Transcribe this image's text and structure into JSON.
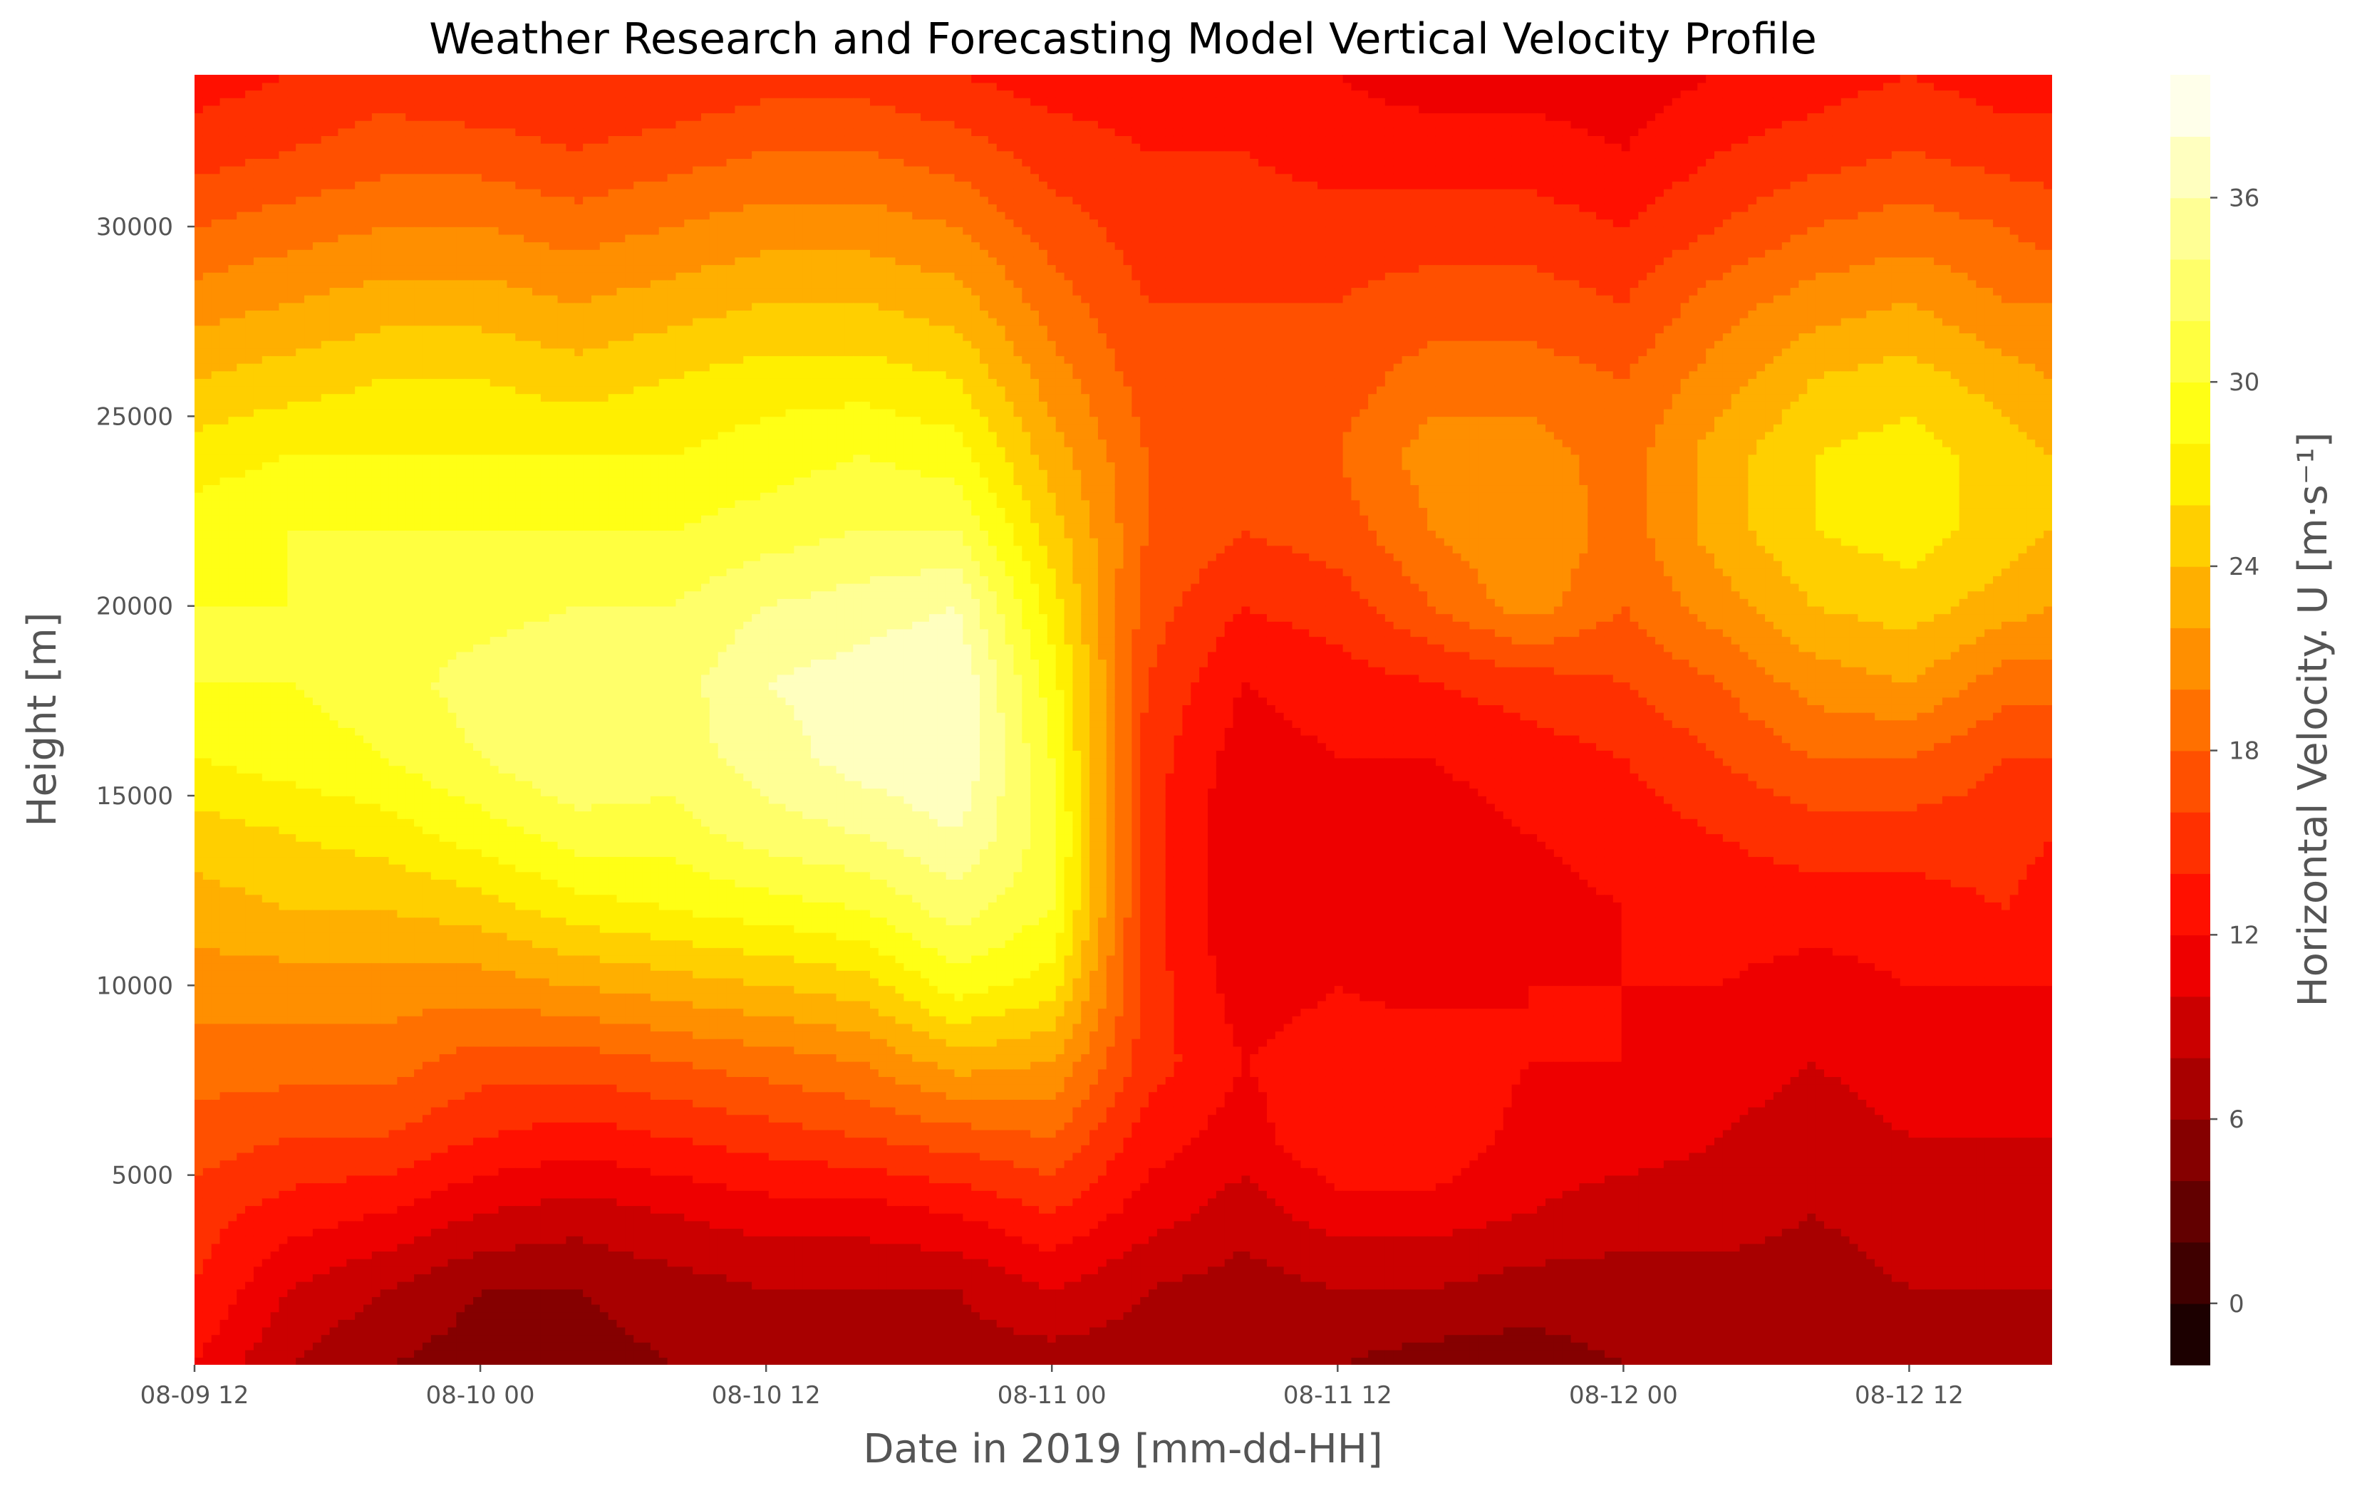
{
  "chart_data": {
    "type": "heatmap",
    "subtype": "filled-contour",
    "title": "Weather Research and Forecasting Model Vertical Velocity Profile",
    "xlabel": "Date in 2019 [mm-dd-HH]",
    "ylabel": "Height [m]",
    "colorbar": {
      "label": "Horizontal Velocity. U [m·s⁻¹]",
      "range": [
        -2,
        40
      ],
      "level_step": 2,
      "ticks": [
        0,
        6,
        12,
        18,
        24,
        30,
        36
      ],
      "tick_labels": [
        "0",
        "6",
        "12",
        "18",
        "24",
        "30",
        "36"
      ],
      "colormap": "hot",
      "colormap_stops": [
        {
          "value": -2,
          "color": "#0b0000"
        },
        {
          "value": 12,
          "color": "#ff0000"
        },
        {
          "value": 28,
          "color": "#ffff00"
        },
        {
          "value": 40,
          "color": "#ffffff"
        }
      ]
    },
    "x_range_hours": [
      0,
      78
    ],
    "x_ticks": [
      {
        "hours": 0,
        "label": "08-09 12"
      },
      {
        "hours": 12,
        "label": "08-10 00"
      },
      {
        "hours": 24,
        "label": "08-10 12"
      },
      {
        "hours": 36,
        "label": "08-11 00"
      },
      {
        "hours": 48,
        "label": "08-11 12"
      },
      {
        "hours": 60,
        "label": "08-12 00"
      },
      {
        "hours": 72,
        "label": "08-12 12"
      }
    ],
    "ylim": [
      0,
      34000
    ],
    "y_ticks": [
      5000,
      10000,
      15000,
      20000,
      25000,
      30000
    ],
    "y_tick_labels": [
      "5000",
      "10000",
      "15000",
      "20000",
      "25000",
      "30000"
    ],
    "grid": false,
    "times_hours": [
      0,
      4,
      8,
      12,
      16,
      20,
      24,
      28,
      32,
      36,
      40,
      44,
      48,
      52,
      56,
      60,
      64,
      68,
      72,
      76,
      78
    ],
    "heights_m": [
      0,
      2000,
      4000,
      6000,
      8000,
      10000,
      12000,
      14000,
      16000,
      18000,
      20000,
      22000,
      24000,
      26000,
      28000,
      30000,
      32000,
      34000
    ],
    "u_by_time": [
      [
        12,
        14,
        15,
        17,
        19,
        21,
        23,
        25,
        28,
        30,
        30,
        29,
        27,
        24,
        21,
        18,
        15,
        13
      ],
      [
        8,
        10,
        13,
        16,
        19,
        21,
        24,
        26,
        29,
        30,
        30,
        30,
        28,
        25,
        22,
        19,
        16,
        14
      ],
      [
        6,
        8,
        12,
        16,
        19,
        21,
        24,
        27,
        30,
        31,
        31,
        30,
        28,
        26,
        23,
        20,
        17,
        15
      ],
      [
        5,
        6,
        10,
        14,
        17,
        21,
        25,
        29,
        32,
        33,
        31,
        30,
        28,
        26,
        23,
        20,
        17,
        14
      ],
      [
        5,
        6,
        9,
        13,
        17,
        22,
        27,
        31,
        34,
        34,
        32,
        30,
        28,
        25,
        22,
        19,
        16,
        14
      ],
      [
        6,
        7,
        10,
        14,
        18,
        23,
        28,
        31,
        33,
        33,
        32,
        30,
        28,
        26,
        23,
        20,
        17,
        14
      ],
      [
        6,
        8,
        11,
        15,
        19,
        24,
        29,
        33,
        35,
        36,
        34,
        31,
        29,
        27,
        24,
        21,
        18,
        15
      ],
      [
        7,
        8,
        11,
        16,
        20,
        25,
        30,
        34,
        37,
        37,
        35,
        32,
        30,
        27,
        24,
        21,
        18,
        15
      ],
      [
        7,
        8,
        12,
        17,
        23,
        29,
        33,
        36,
        38,
        38,
        36,
        32,
        29,
        26,
        23,
        20,
        17,
        14
      ],
      [
        7,
        10,
        14,
        18,
        22,
        27,
        30,
        31,
        30,
        29,
        27,
        25,
        23,
        21,
        19,
        17,
        15,
        13
      ],
      [
        7,
        8,
        11,
        13,
        15,
        15,
        15,
        15,
        15,
        16,
        17,
        18,
        18,
        17,
        16,
        15,
        14,
        13
      ],
      [
        6,
        7,
        9,
        11,
        12,
        11,
        10,
        10,
        11,
        12,
        14,
        16,
        17,
        17,
        16,
        15,
        14,
        13
      ],
      [
        6,
        8,
        11,
        14,
        13,
        12,
        11,
        11,
        12,
        13,
        15,
        17,
        18,
        17,
        16,
        15,
        13,
        12
      ],
      [
        5,
        8,
        11,
        14,
        14,
        11,
        10,
        11,
        12,
        14,
        18,
        20,
        21,
        19,
        17,
        15,
        13,
        11
      ],
      [
        5,
        7,
        10,
        11,
        12,
        12,
        11,
        12,
        13,
        15,
        21,
        22,
        21,
        19,
        17,
        15,
        13,
        11
      ],
      [
        6,
        7,
        9,
        11,
        12,
        12,
        12,
        13,
        14,
        16,
        18,
        19,
        19,
        18,
        16,
        14,
        12,
        11
      ],
      [
        6,
        7,
        9,
        10,
        11,
        12,
        13,
        14,
        16,
        18,
        21,
        23,
        23,
        21,
        19,
        16,
        14,
        12
      ],
      [
        6,
        7,
        8,
        9,
        10,
        11,
        13,
        15,
        18,
        21,
        24,
        26,
        26,
        24,
        21,
        18,
        15,
        13
      ],
      [
        7,
        8,
        9,
        10,
        11,
        12,
        13,
        15,
        18,
        22,
        25,
        27,
        27,
        25,
        22,
        19,
        16,
        14
      ],
      [
        7,
        8,
        9,
        10,
        11,
        12,
        14,
        15,
        16,
        19,
        23,
        25,
        25,
        23,
        20,
        18,
        15,
        13
      ],
      [
        6,
        8,
        9,
        10,
        11,
        12,
        13,
        14,
        16,
        19,
        22,
        24,
        24,
        22,
        20,
        17,
        15,
        13
      ]
    ]
  }
}
